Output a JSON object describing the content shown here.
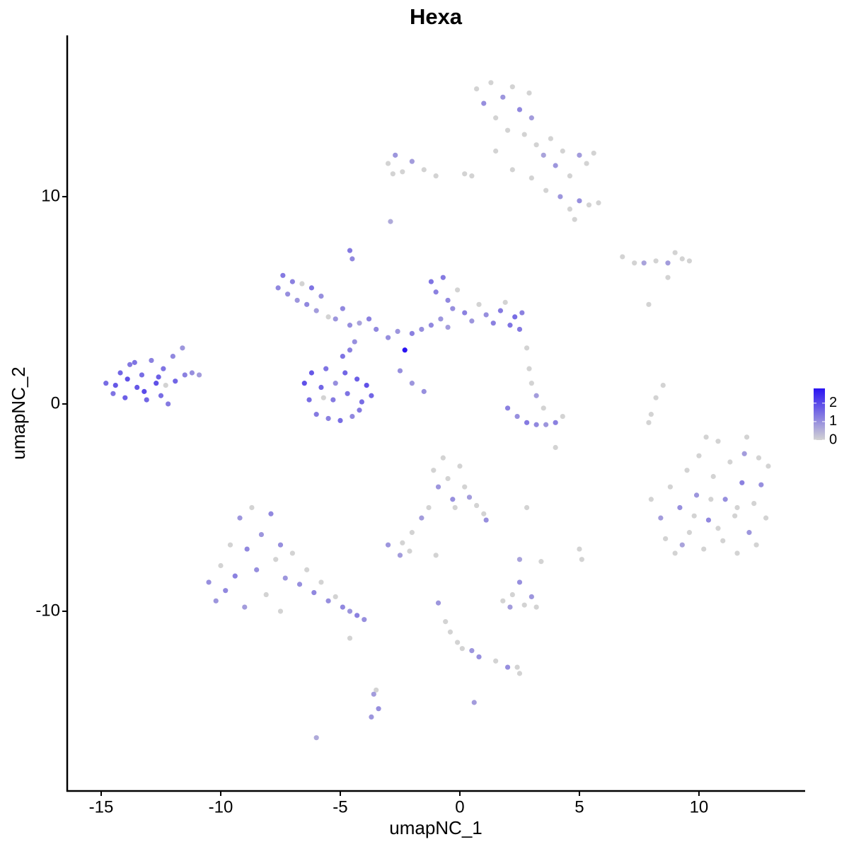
{
  "chart_data": {
    "type": "scatter",
    "title": "Hexa",
    "x_label": "umapNC_1",
    "y_label": "umapNC_2",
    "xlim": [
      -16.42,
      14.44
    ],
    "ylim": [
      -18.67,
      17.78
    ],
    "xticks": [
      -15,
      -10,
      -5,
      0,
      5,
      10
    ],
    "yticks": [
      -10,
      0,
      10
    ],
    "color_low": "#d3d3d3",
    "color_high": "#2a14f2",
    "colorbar": {
      "lim": [
        0,
        2.8
      ],
      "ticks": [
        0,
        1,
        2
      ]
    },
    "x": [
      -14.8,
      -14.5,
      -14.2,
      -14.0,
      -13.8,
      -13.5,
      -13.3,
      -13.1,
      -12.9,
      -12.7,
      -12.5,
      -12.4,
      -12.2,
      -12.0,
      -11.9,
      -11.6,
      -11.5,
      -11.2,
      -10.9,
      -13.9,
      -13.2,
      -12.6,
      -14.4,
      -12.3,
      -13.6,
      -6.5,
      -6.3,
      -6.2,
      -6.0,
      -5.8,
      -5.6,
      -5.5,
      -5.3,
      -5.0,
      -4.8,
      -4.7,
      -4.5,
      -4.3,
      -4.1,
      -3.9,
      -3.7,
      -4.9,
      -4.6,
      -4.4,
      -5.7,
      -4.2,
      -5.2,
      -7.6,
      -7.4,
      -7.2,
      -7.0,
      -6.8,
      -6.6,
      -6.4,
      -6.2,
      -6.0,
      -5.8,
      -5.5,
      -5.2,
      -4.9,
      -4.6,
      -4.2,
      -3.8,
      -3.5,
      -3.0,
      -2.6,
      -2.3,
      -2.0,
      -1.6,
      -1.2,
      -0.8,
      -1.2,
      -1.0,
      -0.7,
      -0.5,
      -0.3,
      -0.1,
      0.2,
      0.5,
      0.8,
      1.1,
      1.4,
      1.7,
      1.9,
      2.1,
      2.3,
      2.5,
      2.6,
      -0.5,
      -2.5,
      -2.0,
      -1.5,
      -4.6,
      -4.5,
      -2.9,
      0.7,
      1.0,
      1.3,
      1.5,
      1.8,
      2.0,
      2.2,
      2.5,
      2.7,
      2.9,
      3.0,
      3.2,
      3.5,
      3.8,
      4.0,
      4.3,
      4.6,
      5.0,
      5.3,
      5.6,
      4.2,
      4.6,
      5.0,
      5.4,
      5.8,
      4.8,
      3.6,
      3.0,
      2.2,
      1.5,
      -3.0,
      -2.7,
      -2.4,
      -2.0,
      -1.5,
      -1.0,
      0.2,
      0.5,
      -2.8,
      6.8,
      7.3,
      7.7,
      8.2,
      8.7,
      9.0,
      9.3,
      9.6,
      8.7,
      7.9,
      8.5,
      8.2,
      8.0,
      7.9,
      2.0,
      2.4,
      2.8,
      3.2,
      3.6,
      4.0,
      4.3,
      3.0,
      3.2,
      2.9,
      3.5,
      4.0,
      2.8,
      8.0,
      8.4,
      8.6,
      8.8,
      9.0,
      9.2,
      9.5,
      9.6,
      9.9,
      10.0,
      10.2,
      10.4,
      10.6,
      10.8,
      11.0,
      11.1,
      11.3,
      11.5,
      11.6,
      11.8,
      12.0,
      12.1,
      12.3,
      12.5,
      12.6,
      12.8,
      12.9,
      10.5,
      11.6,
      9.3,
      10.8,
      11.9,
      12.4,
      9.8,
      10.3,
      -1.1,
      -0.9,
      -0.7,
      -0.5,
      -0.3,
      0.0,
      0.2,
      0.4,
      0.7,
      1.0,
      1.1,
      -0.2,
      -1.3,
      -1.6,
      -2.0,
      -2.4,
      -3.0,
      -2.5,
      -2.1,
      -1.0,
      2.5,
      2.8,
      5.0,
      5.1,
      3.4,
      1.8,
      2.2,
      2.5,
      2.7,
      3.0,
      3.2,
      2.1,
      1.5,
      2.0,
      2.4,
      2.5,
      0.6,
      -0.9,
      -0.6,
      -0.4,
      -0.1,
      0.1,
      0.5,
      0.8,
      -3.6,
      -3.4,
      -3.7,
      -3.5,
      -6.0,
      -10.5,
      -10.2,
      -10.0,
      -9.8,
      -9.6,
      -9.4,
      -9.2,
      -9.0,
      -8.9,
      -8.7,
      -8.5,
      -8.3,
      -8.1,
      -7.9,
      -7.7,
      -7.5,
      -7.3,
      -7.0,
      -6.7,
      -6.4,
      -6.1,
      -5.8,
      -5.5,
      -5.2,
      -4.9,
      -4.6,
      -4.3,
      -4.0,
      -7.5,
      -4.6
    ],
    "values": [
      1.0,
      0.5,
      1.5,
      0.3,
      1.9,
      0.8,
      1.4,
      0.2,
      2.1,
      1.0,
      0.4,
      1.7,
      0.0,
      2.3,
      1.1,
      2.7,
      1.4,
      1.5,
      1.4,
      1.2,
      0.6,
      1.3,
      0.9,
      0.9,
      2.0,
      1.0,
      0.2,
      1.5,
      -0.5,
      0.8,
      1.7,
      -0.7,
      0.2,
      -0.8,
      1.5,
      0.5,
      -0.6,
      1.2,
      0.1,
      0.9,
      0.4,
      2.3,
      2.6,
      3.0,
      0.3,
      -0.3,
      1.0,
      5.6,
      6.2,
      5.3,
      5.9,
      5.0,
      5.8,
      4.8,
      5.6,
      4.5,
      5.2,
      4.2,
      4.1,
      4.6,
      3.8,
      3.9,
      4.1,
      3.6,
      3.2,
      3.5,
      2.6,
      3.4,
      3.6,
      3.8,
      4.1,
      5.9,
      5.4,
      6.1,
      5.0,
      4.6,
      5.5,
      4.4,
      4.0,
      4.8,
      4.3,
      3.9,
      4.5,
      4.9,
      3.8,
      4.2,
      3.6,
      4.4,
      3.7,
      1.6,
      1.0,
      0.6,
      7.4,
      7.0,
      8.8,
      15.2,
      14.5,
      15.5,
      13.8,
      14.8,
      13.2,
      15.3,
      14.2,
      13.0,
      15.0,
      13.8,
      12.5,
      12.0,
      12.8,
      11.5,
      12.2,
      11.0,
      12.0,
      11.6,
      12.1,
      10.0,
      9.4,
      9.8,
      9.6,
      9.7,
      8.9,
      10.3,
      10.9,
      11.3,
      12.2,
      11.6,
      12.0,
      11.2,
      11.7,
      11.3,
      11.0,
      11.1,
      11.0,
      11.1,
      7.1,
      6.8,
      6.8,
      6.9,
      6.8,
      7.3,
      7.0,
      6.9,
      6.1,
      4.8,
      0.9,
      0.3,
      -0.5,
      -0.9,
      -0.2,
      -0.6,
      -0.9,
      -1.0,
      -1.0,
      -0.9,
      -0.6,
      1.0,
      0.4,
      1.7,
      -0.2,
      -2.1,
      2.7,
      -4.6,
      -5.5,
      -6.5,
      -4.0,
      -7.2,
      -5.0,
      -3.2,
      -6.2,
      -4.4,
      -2.5,
      -7.0,
      -5.6,
      -3.5,
      -1.8,
      -6.6,
      -4.6,
      -2.8,
      -5.4,
      -7.2,
      -3.8,
      -1.6,
      -6.2,
      -4.8,
      -2.6,
      -3.9,
      -5.5,
      -3.0,
      -4.6,
      -5.0,
      -6.8,
      -6.0,
      -2.4,
      -6.8,
      -5.4,
      -1.6,
      -3.2,
      -4.0,
      -2.6,
      -3.6,
      -4.6,
      -3.0,
      -4.0,
      -4.5,
      -4.9,
      -5.3,
      -5.6,
      -5.0,
      -5.0,
      -5.5,
      -6.2,
      -6.7,
      -6.8,
      -7.3,
      -7.1,
      -7.3,
      -7.5,
      -5.0,
      -7.0,
      -7.5,
      -7.6,
      -9.5,
      -9.2,
      -8.6,
      -9.7,
      -9.3,
      -9.8,
      -9.8,
      -12.4,
      -12.7,
      -12.7,
      -13.0,
      -14.4,
      -9.6,
      -10.5,
      -11.0,
      -11.5,
      -11.8,
      -11.9,
      -12.2,
      -14.0,
      -14.7,
      -15.1,
      -13.8,
      -16.1,
      -8.6,
      -9.5,
      -7.8,
      -9.0,
      -6.8,
      -8.3,
      -5.5,
      -9.8,
      -7.0,
      -5.0,
      -8.0,
      -6.3,
      -9.2,
      -5.3,
      -7.5,
      -6.8,
      -8.4,
      -7.2,
      -8.7,
      -8.0,
      -9.1,
      -8.6,
      -9.5,
      -9.3,
      -9.8,
      -10.0,
      -10.2,
      -10.4,
      -10.0,
      -11.3
    ],
    "expression": [
      1.5,
      1.4,
      1.6,
      1.7,
      1.3,
      1.8,
      1.5,
      1.6,
      1.2,
      1.9,
      1.5,
      1.4,
      1.3,
      1.1,
      1.6,
      0.9,
      1.2,
      1.0,
      0.8,
      1.9,
      2.0,
      1.7,
      1.8,
      0,
      1.4,
      1.9,
      1.5,
      1.8,
      1.3,
      1.6,
      1.4,
      1.2,
      1.3,
      1.5,
      1.6,
      1.4,
      1.1,
      1.7,
      1.5,
      1.9,
      1.6,
      1.4,
      1.2,
      1.0,
      0,
      1.3,
      1.0,
      1.1,
      1.3,
      1.0,
      1.2,
      0.9,
      0,
      1.1,
      1.4,
      0.8,
      1.0,
      0,
      0.9,
      1.1,
      1.0,
      0.7,
      1.2,
      1.1,
      1.0,
      0.9,
      2.8,
      1.2,
      1.0,
      1.1,
      0.9,
      1.4,
      1.2,
      1.3,
      1.1,
      1.0,
      0,
      1.2,
      0.9,
      0,
      1.0,
      1.2,
      1.3,
      0,
      1.4,
      1.5,
      1.3,
      1.2,
      0.8,
      1.0,
      0.9,
      1.0,
      1.3,
      1.1,
      0.6,
      0,
      1.0,
      0,
      0,
      0.9,
      0,
      0,
      1.1,
      0,
      0,
      0.8,
      0,
      0.7,
      0,
      0.9,
      0,
      0,
      0.8,
      0,
      0,
      0.9,
      0,
      1.0,
      0,
      0,
      0,
      0,
      0,
      0,
      0,
      0,
      0.9,
      0,
      0.8,
      0,
      0,
      0,
      0,
      0,
      0,
      0,
      0.7,
      0,
      0.8,
      0,
      0,
      0,
      0,
      0,
      0,
      0,
      0,
      0,
      1.2,
      1.0,
      1.3,
      1.1,
      0.9,
      1.2,
      0,
      0,
      0.8,
      0,
      0,
      0,
      0,
      0,
      0.8,
      0,
      0,
      0,
      1.0,
      0,
      0,
      0.9,
      0,
      0,
      1.1,
      0,
      0,
      0,
      1.0,
      0,
      0,
      0,
      1.2,
      0,
      0.9,
      0,
      0,
      1.0,
      0,
      0,
      0,
      0,
      0.7,
      0,
      0.8,
      0,
      0,
      0,
      0,
      0.9,
      0,
      0,
      1.0,
      0,
      0,
      0.8,
      0,
      0,
      1.0,
      0,
      0,
      0.8,
      0,
      0,
      0.9,
      0.8,
      0,
      0,
      0.7,
      0,
      0,
      0,
      0,
      0,
      0,
      1.0,
      0,
      0.9,
      0,
      0.8,
      0,
      1.0,
      0,
      0,
      0.8,
      0.9,
      0,
      0,
      0,
      0,
      0.9,
      1.0,
      0.8,
      1.0,
      0.9,
      0,
      0.6,
      1.0,
      0.9,
      0,
      1.1,
      0,
      1.2,
      0.9,
      0.8,
      1.1,
      0,
      1.0,
      0.9,
      0,
      1.1,
      0,
      1.0,
      0.9,
      0,
      1.0,
      0,
      1.1,
      0,
      1.0,
      0,
      1.1,
      0.9,
      1.2,
      1.0,
      0,
      0
    ]
  }
}
